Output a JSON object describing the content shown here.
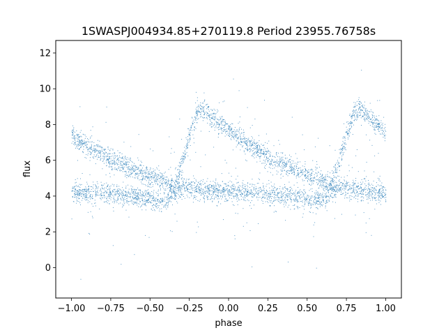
{
  "chart_data": {
    "type": "scatter",
    "title": "1SWASPJ004934.85+270119.8 Period 23955.76758s",
    "xlabel": "phase",
    "ylabel": "flux",
    "xlim": [
      -1.1,
      1.1
    ],
    "ylim": [
      -1.7,
      12.7
    ],
    "xticks": [
      -1.0,
      -0.75,
      -0.5,
      -0.25,
      0.0,
      0.25,
      0.5,
      0.75,
      1.0
    ],
    "xtick_labels": [
      "−1.00",
      "−0.75",
      "−0.50",
      "−0.25",
      "0.00",
      "0.25",
      "0.50",
      "0.75",
      "1.00"
    ],
    "yticks": [
      0,
      2,
      4,
      6,
      8,
      10,
      12
    ],
    "ytick_labels": [
      "0",
      "2",
      "4",
      "6",
      "8",
      "10",
      "12"
    ],
    "grid": false,
    "marker_color": "#1f77b4",
    "series": [
      {
        "description": "sawtooth light-curve branch",
        "x": [
          -1.0,
          -0.9,
          -0.8,
          -0.7,
          -0.6,
          -0.5,
          -0.4,
          -0.35,
          -0.3,
          -0.25,
          -0.2,
          -0.17,
          -0.1,
          0.0,
          0.1,
          0.2,
          0.3,
          0.4,
          0.5,
          0.6,
          0.65,
          0.7,
          0.75,
          0.8,
          0.83,
          0.9,
          1.0
        ],
        "y": [
          7.4,
          6.8,
          6.3,
          5.9,
          5.5,
          5.1,
          4.8,
          4.6,
          5.8,
          7.4,
          8.7,
          8.9,
          8.4,
          7.7,
          7.0,
          6.5,
          6.0,
          5.6,
          5.1,
          4.8,
          4.6,
          5.8,
          7.4,
          8.7,
          8.9,
          8.4,
          7.5
        ]
      },
      {
        "description": "flat branch with dip",
        "x": [
          -1.0,
          -0.9,
          -0.8,
          -0.7,
          -0.6,
          -0.5,
          -0.45,
          -0.4,
          -0.35,
          -0.3,
          -0.2,
          -0.1,
          0.0,
          0.1,
          0.2,
          0.3,
          0.4,
          0.5,
          0.55,
          0.6,
          0.65,
          0.7,
          0.8,
          0.9,
          1.0
        ],
        "y": [
          4.2,
          4.2,
          4.2,
          4.1,
          4.0,
          3.8,
          3.7,
          3.7,
          4.3,
          4.5,
          4.4,
          4.3,
          4.2,
          4.2,
          4.2,
          4.1,
          4.0,
          3.8,
          3.7,
          3.7,
          4.3,
          4.5,
          4.4,
          4.3,
          4.2
        ]
      }
    ]
  }
}
